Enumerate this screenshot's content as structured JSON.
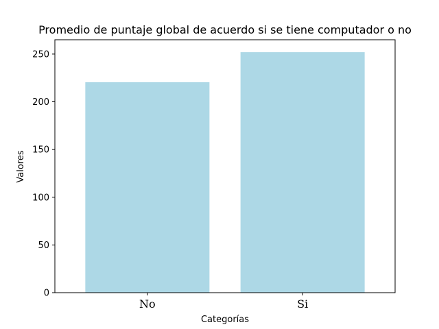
{
  "chart_data": {
    "type": "bar",
    "title": "Promedio de puntaje global de acuerdo si se tiene computador o no",
    "xlabel": "Categorías",
    "ylabel": "Valores",
    "categories": [
      "No",
      "Si"
    ],
    "values": [
      220.5,
      252
    ],
    "ylim": [
      0,
      265
    ],
    "yticks": [
      0,
      50,
      100,
      150,
      200,
      250
    ],
    "bar_color": "#add8e6",
    "grid": false,
    "legend": "none"
  }
}
